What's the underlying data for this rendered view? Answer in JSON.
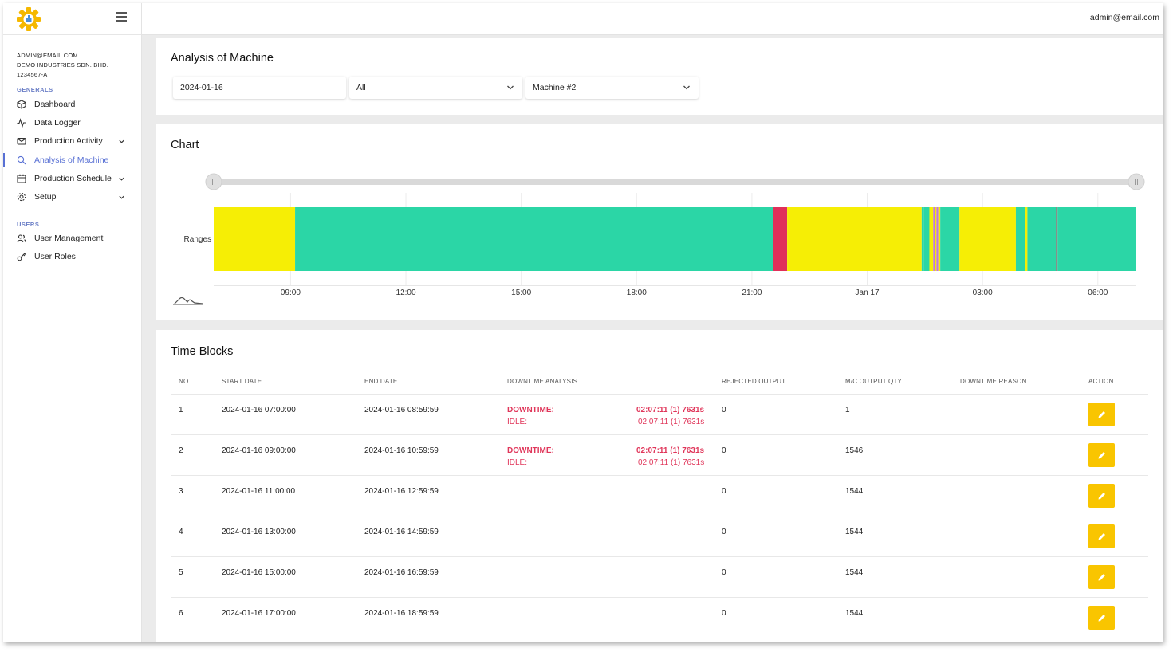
{
  "topbar": {
    "user_email": "admin@email.com"
  },
  "sidebar": {
    "account": {
      "email": "ADMIN@EMAIL.COM",
      "company": "DEMO INDUSTRIES SDN. BHD.",
      "reg_no": "1234567-A"
    },
    "sections": [
      {
        "title": "GENERALS",
        "items": [
          {
            "label": "Dashboard",
            "icon": "cube-icon"
          },
          {
            "label": "Data Logger",
            "icon": "activity-icon"
          },
          {
            "label": "Production Activity",
            "icon": "mail-icon",
            "expandable": true
          },
          {
            "label": "Analysis of Machine",
            "icon": "search-icon",
            "active": true
          },
          {
            "label": "Production Schedule",
            "icon": "calendar-icon",
            "expandable": true
          },
          {
            "label": "Setup",
            "icon": "gear-icon",
            "expandable": true
          }
        ]
      },
      {
        "title": "USERS",
        "items": [
          {
            "label": "User Management",
            "icon": "users-icon"
          },
          {
            "label": "User Roles",
            "icon": "key-icon"
          }
        ]
      }
    ]
  },
  "filters": {
    "title": "Analysis of Machine",
    "date": "2024-01-16",
    "shift": "All",
    "machine": "Machine #2"
  },
  "chart": {
    "title": "Chart",
    "category_label": "Ranges",
    "x_ticks": [
      "09:00",
      "12:00",
      "15:00",
      "18:00",
      "21:00",
      "Jan 17",
      "03:00",
      "06:00"
    ],
    "colors": {
      "running": "#2bd6a6",
      "idle": "#f6ee05",
      "downtime": "#e0305a",
      "other": "#c27ad8"
    }
  },
  "chart_data": {
    "type": "timeline",
    "category": "Ranges",
    "x_range": [
      "2024-01-16 07:00",
      "2024-01-17 07:00"
    ],
    "x_ticks": [
      "09:00",
      "12:00",
      "15:00",
      "18:00",
      "21:00",
      "Jan 17",
      "03:00",
      "06:00"
    ],
    "segments": [
      {
        "start": "2024-01-16 07:00",
        "end": "2024-01-16 09:07",
        "state": "idle"
      },
      {
        "start": "2024-01-16 09:07",
        "end": "2024-01-16 21:33",
        "state": "running"
      },
      {
        "start": "2024-01-16 21:33",
        "end": "2024-01-16 21:55",
        "state": "downtime"
      },
      {
        "start": "2024-01-16 21:55",
        "end": "2024-01-17 01:25",
        "state": "idle"
      },
      {
        "start": "2024-01-17 01:25",
        "end": "2024-01-17 01:28",
        "state": "running"
      },
      {
        "start": "2024-01-17 01:28",
        "end": "2024-01-17 01:37",
        "state": "running"
      },
      {
        "start": "2024-01-17 01:37",
        "end": "2024-01-17 01:43",
        "state": "idle"
      },
      {
        "start": "2024-01-17 01:43",
        "end": "2024-01-17 01:46",
        "state": "other"
      },
      {
        "start": "2024-01-17 01:46",
        "end": "2024-01-17 01:48",
        "state": "idle"
      },
      {
        "start": "2024-01-17 01:48",
        "end": "2024-01-17 01:51",
        "state": "other"
      },
      {
        "start": "2024-01-17 01:51",
        "end": "2024-01-17 01:54",
        "state": "idle"
      },
      {
        "start": "2024-01-17 01:54",
        "end": "2024-01-17 02:24",
        "state": "running"
      },
      {
        "start": "2024-01-17 02:24",
        "end": "2024-01-17 03:52",
        "state": "idle"
      },
      {
        "start": "2024-01-17 03:52",
        "end": "2024-01-17 04:06",
        "state": "running"
      },
      {
        "start": "2024-01-17 04:06",
        "end": "2024-01-17 04:10",
        "state": "idle"
      },
      {
        "start": "2024-01-17 04:10",
        "end": "2024-01-17 04:55",
        "state": "running"
      },
      {
        "start": "2024-01-17 04:55",
        "end": "2024-01-17 04:57",
        "state": "downtime"
      },
      {
        "start": "2024-01-17 04:57",
        "end": "2024-01-17 07:00",
        "state": "running"
      }
    ]
  },
  "time_blocks": {
    "title": "Time Blocks",
    "columns": [
      "NO.",
      "START DATE",
      "END DATE",
      "DOWNTIME ANALYSIS",
      "REJECTED OUTPUT",
      "M/C OUTPUT QTY",
      "DOWNTIME REASON",
      "ACTION"
    ],
    "downtime_label": "DOWNTIME:",
    "idle_label": "IDLE:",
    "rows": [
      {
        "no": "1",
        "start": "2024-01-16 07:00:00",
        "end": "2024-01-16 08:59:59",
        "downtime": "02:07:11 (1) 7631s",
        "idle": "02:07:11 (1) 7631s",
        "rejected": "0",
        "output": "1"
      },
      {
        "no": "2",
        "start": "2024-01-16 09:00:00",
        "end": "2024-01-16 10:59:59",
        "downtime": "02:07:11 (1) 7631s",
        "idle": "02:07:11 (1) 7631s",
        "rejected": "0",
        "output": "1546"
      },
      {
        "no": "3",
        "start": "2024-01-16 11:00:00",
        "end": "2024-01-16 12:59:59",
        "downtime": "",
        "idle": "",
        "rejected": "0",
        "output": "1544"
      },
      {
        "no": "4",
        "start": "2024-01-16 13:00:00",
        "end": "2024-01-16 14:59:59",
        "downtime": "",
        "idle": "",
        "rejected": "0",
        "output": "1544"
      },
      {
        "no": "5",
        "start": "2024-01-16 15:00:00",
        "end": "2024-01-16 16:59:59",
        "downtime": "",
        "idle": "",
        "rejected": "0",
        "output": "1544"
      },
      {
        "no": "6",
        "start": "2024-01-16 17:00:00",
        "end": "2024-01-16 18:59:59",
        "downtime": "",
        "idle": "",
        "rejected": "0",
        "output": "1544"
      }
    ]
  }
}
